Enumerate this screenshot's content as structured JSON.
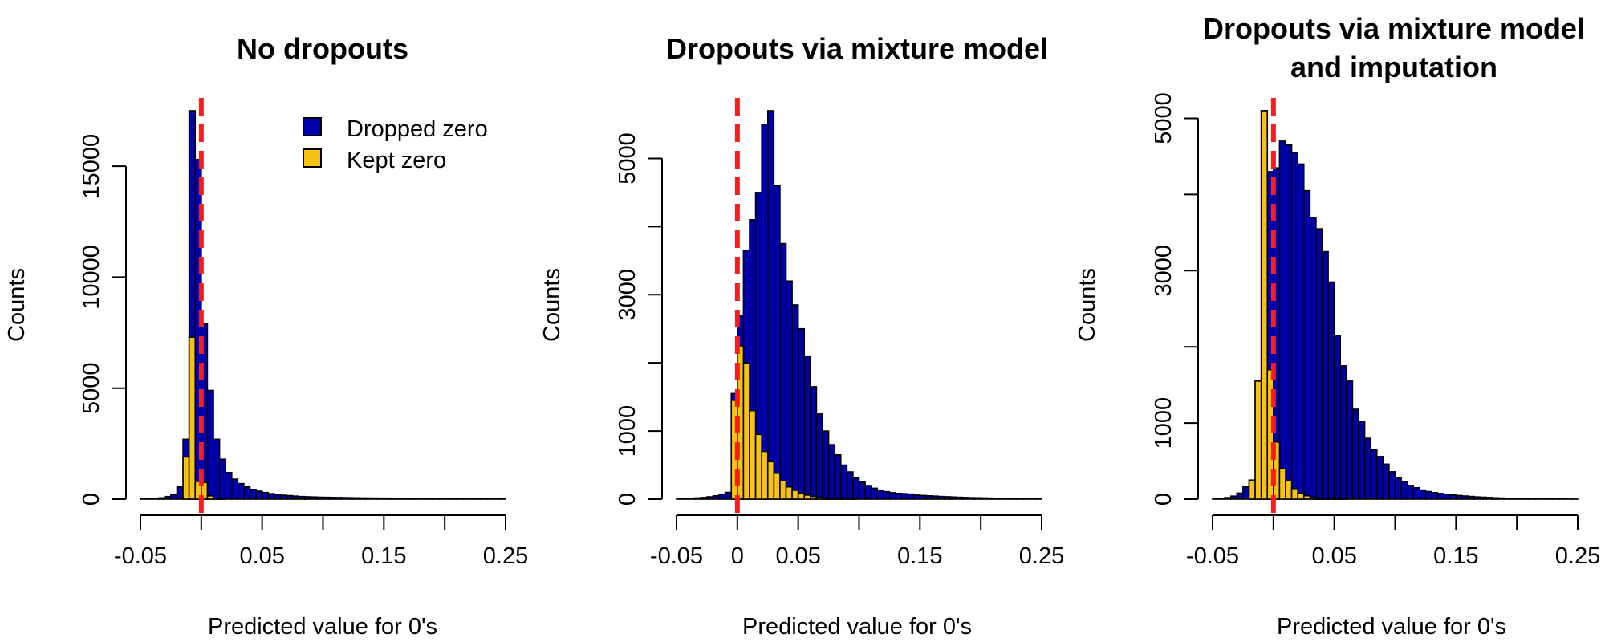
{
  "chart_data": [
    {
      "type": "bar",
      "title": "No dropouts",
      "xlabel": "Predicted value for 0's",
      "ylabel": "Counts",
      "xlim": [
        -0.05,
        0.25
      ],
      "ylim": [
        0,
        17500
      ],
      "x_ticks": [
        -0.05,
        0.0,
        0.05,
        0.1,
        0.15,
        0.2,
        0.25
      ],
      "x_tick_labels": [
        "-0.05",
        "",
        "0.05",
        "",
        "0.15",
        "",
        "0.25"
      ],
      "y_ticks": [
        0,
        5000,
        10000,
        15000
      ],
      "y_tick_labels": [
        "0",
        "5000",
        "10000",
        "15000"
      ],
      "bin_width": 0.005,
      "bin_start": -0.05,
      "legend": {
        "position": "top-right",
        "entries": [
          {
            "label": "Dropped zero",
            "color": "#0000AA"
          },
          {
            "label": "Kept zero",
            "color": "#F5C316"
          }
        ]
      },
      "reference_line": {
        "x": 0.0,
        "color": "#FF1A1A",
        "style": "dashed"
      },
      "series": [
        {
          "name": "Dropped zero",
          "color": "#0000AA",
          "values": [
            10,
            20,
            30,
            60,
            120,
            200,
            550,
            2700,
            17500,
            15300,
            7900,
            4900,
            2700,
            1800,
            1200,
            900,
            700,
            550,
            440,
            360,
            300,
            250,
            210,
            180,
            160,
            140,
            120,
            110,
            100,
            90,
            85,
            80,
            75,
            70,
            65,
            60,
            55,
            52,
            50,
            48,
            46,
            44,
            42,
            40,
            38,
            36,
            34,
            32,
            30,
            28,
            26,
            24,
            22,
            20,
            18,
            16,
            14,
            12,
            10,
            8
          ]
        },
        {
          "name": "Kept zero",
          "color": "#F5C316",
          "values": [
            0,
            0,
            0,
            0,
            0,
            0,
            0,
            1900,
            7300,
            800,
            750,
            150,
            30,
            10,
            0,
            0,
            0,
            0,
            0,
            0,
            0,
            0,
            0,
            0,
            0,
            0,
            0,
            0,
            0,
            0,
            0,
            0,
            0,
            0,
            0,
            0,
            0,
            0,
            0,
            0,
            0,
            0,
            0,
            0,
            0,
            0,
            0,
            0,
            0,
            0,
            0,
            0,
            0,
            0,
            0,
            0,
            0,
            0,
            0,
            0
          ]
        }
      ]
    },
    {
      "type": "bar",
      "title": "Dropouts via mixture model",
      "xlabel": "Predicted value for 0's",
      "ylabel": "Counts",
      "xlim": [
        -0.05,
        0.25
      ],
      "ylim": [
        0,
        5700
      ],
      "x_ticks": [
        -0.05,
        0.0,
        0.05,
        0.1,
        0.15,
        0.2,
        0.25
      ],
      "x_tick_labels": [
        "-0.05",
        "0",
        "0.05",
        "",
        "0.15",
        "",
        "0.25"
      ],
      "y_ticks": [
        0,
        1000,
        2000,
        3000,
        4000,
        5000
      ],
      "y_tick_labels": [
        "0",
        "1000",
        "",
        "3000",
        "",
        "5000"
      ],
      "bin_width": 0.005,
      "bin_start": -0.05,
      "reference_line": {
        "x": 0.0,
        "color": "#FF1A1A",
        "style": "dashed"
      },
      "series": [
        {
          "name": "Dropped zero",
          "color": "#0000AA",
          "values": [
            5,
            8,
            12,
            18,
            25,
            35,
            50,
            70,
            100,
            1550,
            2700,
            3650,
            4100,
            4500,
            5500,
            5700,
            4600,
            3750,
            3200,
            2850,
            2500,
            2100,
            1650,
            1250,
            1000,
            800,
            650,
            500,
            400,
            310,
            250,
            200,
            160,
            130,
            110,
            95,
            85,
            80,
            75,
            60,
            55,
            50,
            45,
            40,
            36,
            32,
            28,
            25,
            22,
            20,
            18,
            16,
            14,
            12,
            10,
            8,
            6,
            5,
            4,
            3
          ]
        },
        {
          "name": "Kept zero",
          "color": "#F5C316",
          "values": [
            0,
            0,
            0,
            0,
            0,
            0,
            0,
            0,
            0,
            1450,
            2250,
            2000,
            1300,
            950,
            700,
            550,
            380,
            270,
            180,
            130,
            90,
            60,
            40,
            25,
            15,
            10,
            6,
            4,
            2,
            1,
            0,
            0,
            0,
            0,
            0,
            0,
            0,
            0,
            0,
            0,
            0,
            0,
            0,
            0,
            0,
            0,
            0,
            0,
            0,
            0,
            0,
            0,
            0,
            0,
            0,
            0,
            0,
            0,
            0,
            0
          ]
        }
      ]
    },
    {
      "type": "bar",
      "title": "Dropouts via mixture model\nand imputation",
      "xlabel": "Predicted value for 0's",
      "ylabel": "Counts",
      "xlim": [
        -0.05,
        0.25
      ],
      "ylim": [
        0,
        5100
      ],
      "x_ticks": [
        -0.05,
        0.0,
        0.05,
        0.1,
        0.15,
        0.2,
        0.25
      ],
      "x_tick_labels": [
        "-0.05",
        "",
        "0.05",
        "",
        "0.15",
        "",
        "0.25"
      ],
      "y_ticks": [
        0,
        1000,
        2000,
        3000,
        4000,
        5000
      ],
      "y_tick_labels": [
        "0",
        "1000",
        "",
        "3000",
        "",
        "5000"
      ],
      "bin_width": 0.005,
      "bin_start": -0.05,
      "reference_line": {
        "x": 0.0,
        "color": "#FF1A1A",
        "style": "dashed"
      },
      "series": [
        {
          "name": "Dropped zero",
          "color": "#0000AA",
          "values": [
            5,
            10,
            20,
            40,
            80,
            160,
            250,
            1550,
            5100,
            4300,
            4350,
            4700,
            4650,
            4550,
            4400,
            4050,
            3700,
            3550,
            3250,
            2850,
            2150,
            1750,
            1550,
            1180,
            1020,
            800,
            650,
            560,
            460,
            360,
            280,
            230,
            180,
            150,
            120,
            100,
            85,
            75,
            65,
            55,
            48,
            42,
            36,
            30,
            26,
            22,
            18,
            15,
            12,
            10,
            8,
            7,
            6,
            5,
            4,
            3,
            2,
            2,
            1,
            1
          ]
        },
        {
          "name": "Kept zero",
          "color": "#F5C316",
          "values": [
            0,
            0,
            0,
            0,
            0,
            0,
            250,
            1550,
            5100,
            1700,
            750,
            400,
            250,
            140,
            80,
            45,
            25,
            15,
            8,
            4,
            2,
            1,
            0,
            0,
            0,
            0,
            0,
            0,
            0,
            0,
            0,
            0,
            0,
            0,
            0,
            0,
            0,
            0,
            0,
            0,
            0,
            0,
            0,
            0,
            0,
            0,
            0,
            0,
            0,
            0,
            0,
            0,
            0,
            0,
            0,
            0,
            0,
            0,
            0,
            0
          ]
        }
      ]
    }
  ]
}
